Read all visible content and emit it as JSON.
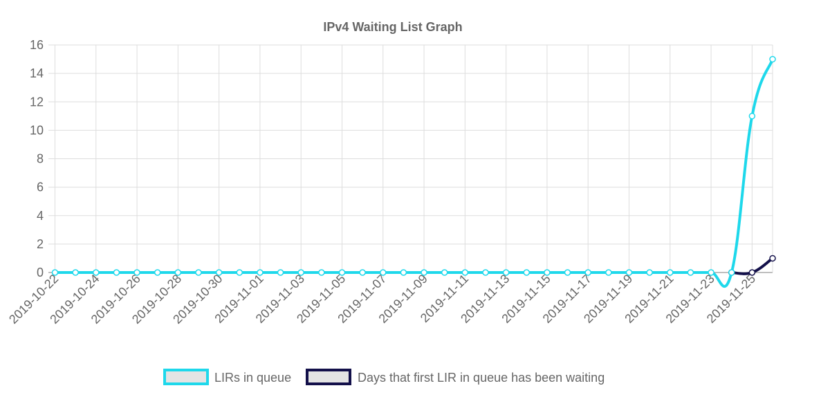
{
  "chart_data": {
    "type": "line",
    "title": "IPv4 Waiting List Graph",
    "x": [
      "2019-10-22",
      "2019-10-23",
      "2019-10-24",
      "2019-10-25",
      "2019-10-26",
      "2019-10-27",
      "2019-10-28",
      "2019-10-29",
      "2019-10-30",
      "2019-10-31",
      "2019-11-01",
      "2019-11-02",
      "2019-11-03",
      "2019-11-04",
      "2019-11-05",
      "2019-11-06",
      "2019-11-07",
      "2019-11-08",
      "2019-11-09",
      "2019-11-10",
      "2019-11-11",
      "2019-11-12",
      "2019-11-13",
      "2019-11-14",
      "2019-11-15",
      "2019-11-16",
      "2019-11-17",
      "2019-11-18",
      "2019-11-19",
      "2019-11-20",
      "2019-11-21",
      "2019-11-22",
      "2019-11-23",
      "2019-11-24",
      "2019-11-25",
      "2019-11-26"
    ],
    "x_tick_labels": [
      "2019-10-22",
      "2019-10-24",
      "2019-10-26",
      "2019-10-28",
      "2019-10-30",
      "2019-11-01",
      "2019-11-03",
      "2019-11-05",
      "2019-11-07",
      "2019-11-09",
      "2019-11-11",
      "2019-11-13",
      "2019-11-15",
      "2019-11-17",
      "2019-11-19",
      "2019-11-21",
      "2019-11-23",
      "2019-11-25"
    ],
    "ylim": [
      0,
      16
    ],
    "y_ticks": [
      "0",
      "2",
      "4",
      "6",
      "8",
      "10",
      "12",
      "14",
      "16"
    ],
    "grid": true,
    "legend_position": "bottom",
    "series": [
      {
        "name": "LIRs in queue",
        "color": "#1ed8eb",
        "values": [
          0,
          0,
          0,
          0,
          0,
          0,
          0,
          0,
          0,
          0,
          0,
          0,
          0,
          0,
          0,
          0,
          0,
          0,
          0,
          0,
          0,
          0,
          0,
          0,
          0,
          0,
          0,
          0,
          0,
          0,
          0,
          0,
          0,
          0,
          11,
          15
        ]
      },
      {
        "name": "Days that first LIR in queue has been waiting",
        "color": "#13104a",
        "values": [
          null,
          null,
          null,
          null,
          null,
          null,
          null,
          null,
          null,
          null,
          null,
          null,
          null,
          null,
          null,
          null,
          null,
          null,
          null,
          null,
          null,
          null,
          null,
          null,
          null,
          null,
          null,
          null,
          null,
          null,
          null,
          null,
          null,
          0,
          0,
          1
        ]
      }
    ]
  }
}
